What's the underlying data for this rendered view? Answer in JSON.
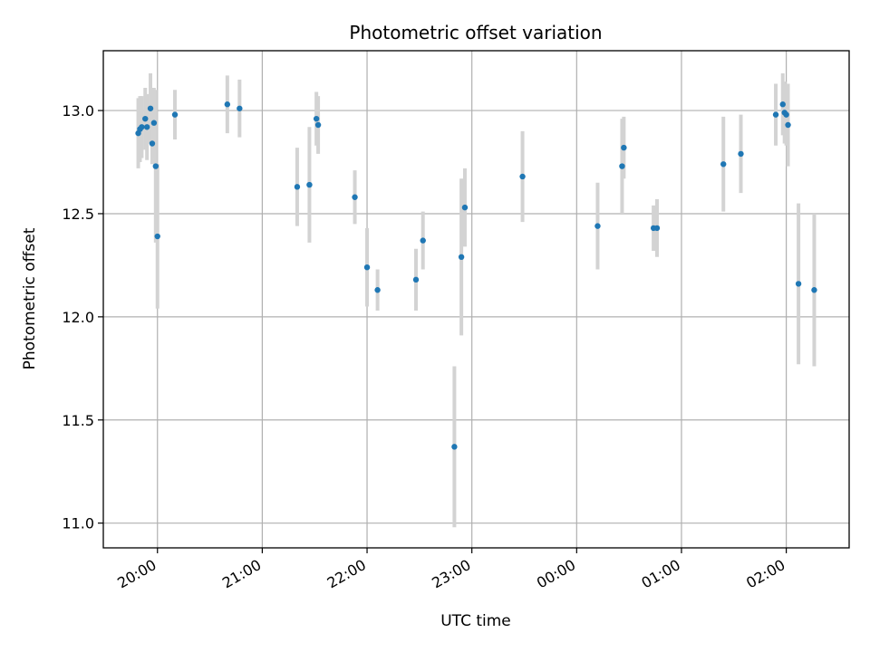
{
  "chart_data": {
    "type": "scatter",
    "title": "Photometric offset variation",
    "xlabel": "UTC time",
    "ylabel": "Photometric offset",
    "grid": true,
    "xlim": [
      "19:29",
      "26:36"
    ],
    "ylim": [
      10.88,
      13.29
    ],
    "x_ticks": [
      "20:00",
      "21:00",
      "22:00",
      "23:00",
      "00:00",
      "01:00",
      "02:00"
    ],
    "y_ticks": [
      "11.0",
      "11.5",
      "12.0",
      "12.5",
      "13.0"
    ],
    "colors": {
      "marker": "#1f77b4",
      "errorbar": "#d3d3d3"
    },
    "series": [
      {
        "points": [
          {
            "x": "19:49",
            "y": 12.89,
            "err": 0.17
          },
          {
            "x": "19:50",
            "y": 12.91,
            "err": 0.16
          },
          {
            "x": "19:51",
            "y": 12.92,
            "err": 0.15
          },
          {
            "x": "19:53",
            "y": 12.96,
            "err": 0.15
          },
          {
            "x": "19:54",
            "y": 12.92,
            "err": 0.16
          },
          {
            "x": "19:56",
            "y": 13.01,
            "err": 0.17
          },
          {
            "x": "19:57",
            "y": 12.84,
            "err": 0.1
          },
          {
            "x": "19:58",
            "y": 12.94,
            "err": 0.17
          },
          {
            "x": "19:59",
            "y": 12.73,
            "err": 0.37
          },
          {
            "x": "20:00",
            "y": 12.39,
            "err": 0.35
          },
          {
            "x": "20:10",
            "y": 12.98,
            "err": 0.12
          },
          {
            "x": "20:40",
            "y": 13.03,
            "err": 0.14
          },
          {
            "x": "20:47",
            "y": 13.01,
            "err": 0.14
          },
          {
            "x": "21:20",
            "y": 12.63,
            "err": 0.19
          },
          {
            "x": "21:27",
            "y": 12.64,
            "err": 0.28
          },
          {
            "x": "21:31",
            "y": 12.96,
            "err": 0.13
          },
          {
            "x": "21:32",
            "y": 12.93,
            "err": 0.14
          },
          {
            "x": "21:53",
            "y": 12.58,
            "err": 0.13
          },
          {
            "x": "22:00",
            "y": 12.24,
            "err": 0.19
          },
          {
            "x": "22:06",
            "y": 12.13,
            "err": 0.1
          },
          {
            "x": "22:28",
            "y": 12.18,
            "err": 0.15
          },
          {
            "x": "22:32",
            "y": 12.37,
            "err": 0.14
          },
          {
            "x": "22:50",
            "y": 11.37,
            "err": 0.39
          },
          {
            "x": "22:54",
            "y": 12.29,
            "err": 0.38
          },
          {
            "x": "22:56",
            "y": 12.53,
            "err": 0.19
          },
          {
            "x": "23:29",
            "y": 12.68,
            "err": 0.22
          },
          {
            "x": "00:12",
            "y": 12.44,
            "err": 0.21
          },
          {
            "x": "00:26",
            "y": 12.73,
            "err": 0.23
          },
          {
            "x": "00:27",
            "y": 12.82,
            "err": 0.15
          },
          {
            "x": "00:44",
            "y": 12.43,
            "err": 0.11
          },
          {
            "x": "00:46",
            "y": 12.43,
            "err": 0.14
          },
          {
            "x": "01:24",
            "y": 12.74,
            "err": 0.23
          },
          {
            "x": "01:34",
            "y": 12.79,
            "err": 0.19
          },
          {
            "x": "01:54",
            "y": 12.98,
            "err": 0.15
          },
          {
            "x": "01:58",
            "y": 13.03,
            "err": 0.15
          },
          {
            "x": "01:59",
            "y": 12.99,
            "err": 0.15
          },
          {
            "x": "02:00",
            "y": 12.98,
            "err": 0.15
          },
          {
            "x": "02:01",
            "y": 12.93,
            "err": 0.2
          },
          {
            "x": "02:07",
            "y": 12.16,
            "err": 0.39
          },
          {
            "x": "02:16",
            "y": 12.13,
            "err": 0.37
          }
        ]
      }
    ]
  }
}
